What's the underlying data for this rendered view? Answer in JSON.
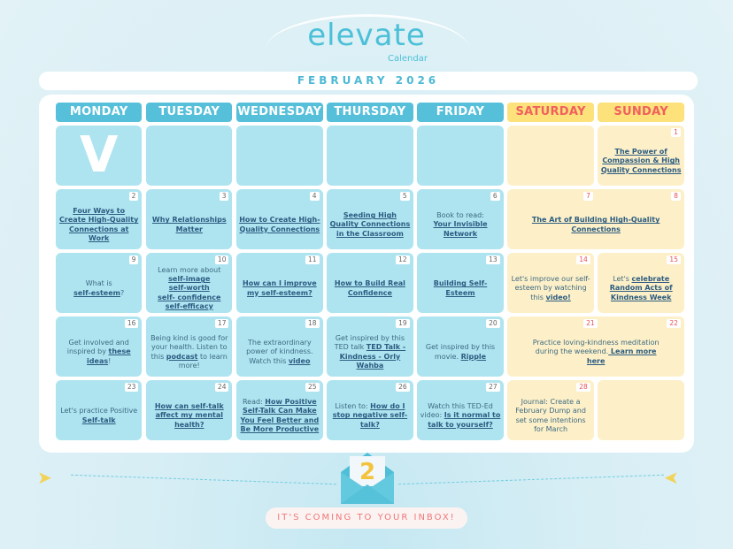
{
  "header": {
    "logo": "elevate",
    "sublogo": "Calendar",
    "month": "FEBRUARY 2026"
  },
  "days": [
    "MONDAY",
    "TUESDAY",
    "WEDNESDAY",
    "THURSDAY",
    "FRIDAY",
    "SATURDAY",
    "SUNDAY"
  ],
  "colors": {
    "weekday": "#aee4f0",
    "weekend": "#fdf0c8",
    "header": "#56bfd9",
    "weekend_header": "#fde17a",
    "link": "#2b5b80",
    "weekend_number": "#e8505b"
  },
  "cells": [
    {
      "type": "logo",
      "icon": "elevate-v-logo"
    },
    {
      "type": "b"
    },
    {
      "type": "b"
    },
    {
      "type": "b"
    },
    {
      "type": "b"
    },
    {
      "type": "y"
    },
    {
      "type": "y",
      "num": "1",
      "parts": [
        {
          "t": "The Power of Compassion & High Quality Connections",
          "link": true
        }
      ]
    },
    {
      "type": "b",
      "num": "2",
      "parts": [
        {
          "t": "Four Ways to Create High-Quality Connections at Work",
          "link": true
        }
      ]
    },
    {
      "type": "b",
      "num": "3",
      "parts": [
        {
          "t": "Why Relationships Matter",
          "link": true
        }
      ]
    },
    {
      "type": "b",
      "num": "4",
      "parts": [
        {
          "t": "How to Create High-Quality Connections",
          "link": true
        }
      ]
    },
    {
      "type": "b",
      "num": "5",
      "parts": [
        {
          "t": "Seeding High Quality Connections in the Classroom",
          "link": true
        }
      ]
    },
    {
      "type": "b",
      "num": "6",
      "parts": [
        {
          "t": "Book to read: "
        },
        {
          "br": true
        },
        {
          "t": "Your Invisible Network",
          "link": true
        }
      ]
    },
    {
      "type": "y",
      "span": 2,
      "num": "7",
      "num2": "8",
      "parts": [
        {
          "t": "The Art of Building High-Quality Connections",
          "link": true
        }
      ]
    },
    {
      "type": "b",
      "num": "9",
      "parts": [
        {
          "t": "What is "
        },
        {
          "br": true
        },
        {
          "t": "self-esteem",
          "link": true
        },
        {
          "t": "?"
        }
      ]
    },
    {
      "type": "b",
      "num": "10",
      "parts": [
        {
          "t": "Learn more about"
        },
        {
          "br": true
        },
        {
          "t": "self-image",
          "link": true
        },
        {
          "br": true
        },
        {
          "t": "self-worth",
          "link": true
        },
        {
          "br": true
        },
        {
          "t": "self- confidence",
          "link": true
        },
        {
          "br": true
        },
        {
          "t": "self-efficacy",
          "link": true
        }
      ]
    },
    {
      "type": "b",
      "num": "11",
      "parts": [
        {
          "t": "How can I improve my self-esteem?",
          "link": true
        }
      ]
    },
    {
      "type": "b",
      "num": "12",
      "parts": [
        {
          "t": "How to Build Real Confidence",
          "link": true
        }
      ]
    },
    {
      "type": "b",
      "num": "13",
      "parts": [
        {
          "t": "Building Self-Esteem",
          "link": true
        }
      ]
    },
    {
      "type": "y",
      "num": "14",
      "parts": [
        {
          "t": "Let's improve our self-esteem by watching this "
        },
        {
          "t": "video!",
          "link": true
        }
      ]
    },
    {
      "type": "y",
      "num": "15",
      "parts": [
        {
          "t": "Let's "
        },
        {
          "t": "celebrate Random Acts of Kindness Week",
          "link": true
        }
      ]
    },
    {
      "type": "b",
      "num": "16",
      "parts": [
        {
          "t": "Get involved and inspired by "
        },
        {
          "t": "these ideas",
          "link": true
        },
        {
          "t": "!"
        }
      ]
    },
    {
      "type": "b",
      "num": "17",
      "parts": [
        {
          "t": "Being kind is good for your health. Listen to this "
        },
        {
          "t": "podcast",
          "link": true
        },
        {
          "t": " to learn more!"
        }
      ]
    },
    {
      "type": "b",
      "num": "18",
      "parts": [
        {
          "t": "The extraordinary power of kindness. Watch this "
        },
        {
          "t": "video",
          "link": true
        }
      ]
    },
    {
      "type": "b",
      "num": "19",
      "parts": [
        {
          "t": "Get inspired by this TED talk "
        },
        {
          "t": "TED Talk - Kindness - Orly Wahba",
          "link": true
        }
      ]
    },
    {
      "type": "b",
      "num": "20",
      "parts": [
        {
          "t": "Get inspired by this movie. "
        },
        {
          "t": "Ripple",
          "link": true
        }
      ]
    },
    {
      "type": "y",
      "span": 2,
      "num": "21",
      "num2": "22",
      "parts": [
        {
          "t": "Practice loving-kindness meditation during the weekend."
        },
        {
          "t": " Learn more here",
          "link": true
        }
      ]
    },
    {
      "type": "b",
      "num": "23",
      "parts": [
        {
          "t": "Let's practice Positive "
        },
        {
          "t": "Self-talk",
          "link": true
        }
      ]
    },
    {
      "type": "b",
      "num": "24",
      "parts": [
        {
          "t": "How can self-talk affect my mental health?",
          "link": true
        }
      ]
    },
    {
      "type": "b",
      "num": "25",
      "parts": [
        {
          "t": "Read: "
        },
        {
          "t": "How Positive Self-Talk Can Make You Feel Better and Be More Productive",
          "link": true
        }
      ]
    },
    {
      "type": "b",
      "num": "26",
      "parts": [
        {
          "t": "Listen to: "
        },
        {
          "t": "How do I stop negative self-talk?",
          "link": true
        }
      ]
    },
    {
      "type": "b",
      "num": "27",
      "parts": [
        {
          "t": "Watch this TED-Ed video: "
        },
        {
          "t": "Is it normal to talk to yourself?",
          "link": true
        }
      ]
    },
    {
      "type": "y",
      "num": "28",
      "parts": [
        {
          "t": "Journal: Create a February Dump and set some intentions for March"
        }
      ]
    },
    {
      "type": "y"
    }
  ],
  "footer": {
    "envelope_number": "2",
    "banner": "IT'S COMING TO YOUR INBOX!"
  }
}
